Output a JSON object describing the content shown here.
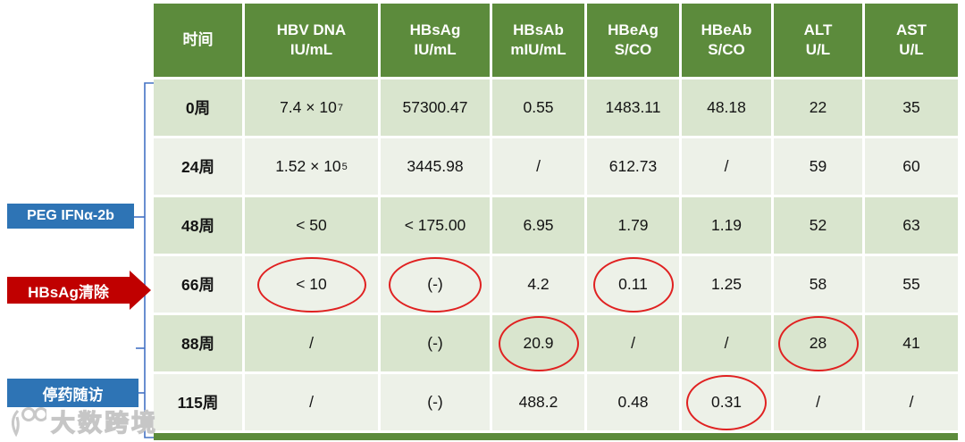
{
  "colors": {
    "header_green": "#5C8B3C",
    "row_dark": "#D9E5CE",
    "row_light": "#EDF1E8",
    "label_blue": "#2E74B5",
    "label_red": "#C00000",
    "ellipse_red": "#E02121",
    "bracket_blue": "#4472C4"
  },
  "table": {
    "headers": [
      {
        "name": "时间",
        "unit": ""
      },
      {
        "name": "HBV DNA",
        "unit": "IU/mL"
      },
      {
        "name": "HBsAg",
        "unit": "IU/mL"
      },
      {
        "name": "HBsAb",
        "unit": "mIU/mL"
      },
      {
        "name": "HBeAg",
        "unit": "S/CO"
      },
      {
        "name": "HBeAb",
        "unit": "S/CO"
      },
      {
        "name": "ALT",
        "unit": "U/L"
      },
      {
        "name": "AST",
        "unit": "U/L"
      }
    ],
    "rows": [
      {
        "time": "0周",
        "values": [
          {
            "base": "7.4 × 10",
            "exp": "7"
          },
          "57300.47",
          "0.55",
          "1483.11",
          "48.18",
          "22",
          "35"
        ],
        "circled": []
      },
      {
        "time": "24周",
        "values": [
          {
            "base": "1.52 × 10",
            "exp": "5"
          },
          "3445.98",
          "/",
          "612.73",
          "/",
          "59",
          "60"
        ],
        "circled": []
      },
      {
        "time": "48周",
        "values": [
          "< 50",
          "< 175.00",
          "6.95",
          "1.79",
          "1.19",
          "52",
          "63"
        ],
        "circled": []
      },
      {
        "time": "66周",
        "values": [
          "< 10",
          "(-)",
          "4.2",
          "0.11",
          "1.25",
          "58",
          "55"
        ],
        "circled": [
          0,
          1,
          3
        ]
      },
      {
        "time": "88周",
        "values": [
          "/",
          "(-)",
          "20.9",
          "/",
          "/",
          "28",
          "41"
        ],
        "circled": [
          2,
          5
        ]
      },
      {
        "time": "115周",
        "values": [
          "/",
          "(-)",
          "488.2",
          "0.48",
          "0.31",
          "/",
          "/"
        ],
        "circled": [
          4
        ]
      }
    ]
  },
  "chart_data": {
    "type": "table",
    "columns": [
      "时间",
      "HBV DNA IU/mL",
      "HBsAg IU/mL",
      "HBsAb mIU/mL",
      "HBeAg S/CO",
      "HBeAb S/CO",
      "ALT U/L",
      "AST U/L"
    ],
    "rows": [
      [
        "0周",
        "7.4 × 10^7",
        "57300.47",
        "0.55",
        "1483.11",
        "48.18",
        "22",
        "35"
      ],
      [
        "24周",
        "1.52 × 10^5",
        "3445.98",
        "/",
        "612.73",
        "/",
        "59",
        "60"
      ],
      [
        "48周",
        "< 50",
        "< 175.00",
        "6.95",
        "1.79",
        "1.19",
        "52",
        "63"
      ],
      [
        "66周",
        "< 10",
        "(-)",
        "4.2",
        "0.11",
        "1.25",
        "58",
        "55"
      ],
      [
        "88周",
        "/",
        "(-)",
        "20.9",
        "/",
        "/",
        "28",
        "41"
      ],
      [
        "115周",
        "/",
        "(-)",
        "488.2",
        "0.48",
        "0.31",
        "/",
        "/"
      ]
    ],
    "circled_values": [
      {
        "row": "66周",
        "column": "HBV DNA IU/mL",
        "value": "< 10"
      },
      {
        "row": "66周",
        "column": "HBsAg IU/mL",
        "value": "(-)"
      },
      {
        "row": "66周",
        "column": "HBeAg S/CO",
        "value": "0.11"
      },
      {
        "row": "88周",
        "column": "HBsAb mIU/mL",
        "value": "20.9"
      },
      {
        "row": "88周",
        "column": "ALT U/L",
        "value": "28"
      },
      {
        "row": "115周",
        "column": "HBeAb S/CO",
        "value": "0.31"
      }
    ]
  },
  "annotations": {
    "treatment_label": "PEG IFNα-2b",
    "clearance_label": "HBsAg清除",
    "followup_label": "停药随访"
  },
  "watermark": {
    "text": "大数跨境"
  }
}
